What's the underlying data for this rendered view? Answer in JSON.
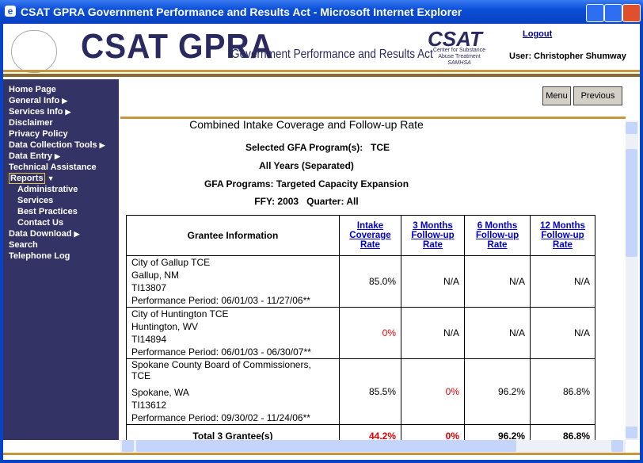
{
  "window": {
    "title": "CSAT GPRA Government Performance and Results Act - Microsoft Internet Explorer"
  },
  "header": {
    "logo_text": "CSAT GPRA",
    "subtitle": "Government Performance and Results Act",
    "csat_logo": {
      "name": "CSAT",
      "lines": [
        "Center for Substance",
        "Abuse Treatment",
        "SAMHSA"
      ]
    },
    "logout": "Logout",
    "user": "User: Christopher Shumway"
  },
  "nav": {
    "items": [
      "Home Page",
      "General Info",
      "Services Info",
      "Disclaimer",
      "Privacy Policy",
      "Data Collection Tools",
      "Data Entry",
      "Technical Assistance",
      "Reports",
      "Data Download",
      "Search",
      "Telephone Log"
    ],
    "reports_submenu": [
      "Administrative",
      "Services",
      "Best Practices",
      "Contact Us"
    ]
  },
  "toolbar": {
    "buttons": [
      "Menu",
      "Previous"
    ]
  },
  "report": {
    "title": "Combined Intake Coverage and Follow-up Rate",
    "program_label": "Selected GFA Program(s):",
    "program": "TCE",
    "years": "All Years (Separated)",
    "gfa": "GFA Programs: Targeted Capacity Expansion",
    "ffy": "FFY: 2003",
    "quarter": "Quarter: All"
  },
  "table": {
    "header": [
      "Grantee Information",
      "Intake Coverage Rate",
      "3 Months Follow-up Rate",
      "6 Months Follow-up Rate",
      "12 Months Follow-up Rate"
    ],
    "rows": [
      {
        "grantee": [
          "City of Gallup TCE",
          "Gallup, NM",
          "TI13807",
          "Performance Period: 06/01/03 - 11/27/06**"
        ],
        "rates": [
          "85.0%",
          "N/A",
          "N/A",
          "N/A"
        ]
      },
      {
        "grantee": [
          "City of Huntington TCE",
          "Huntington, WV",
          "TI14894",
          "Performance Period: 06/01/03 - 06/30/07**"
        ],
        "rates": [
          "0%",
          "N/A",
          "N/A",
          "N/A"
        ]
      },
      {
        "grantee": [
          "Spokane County Board of Commissioners, TCE",
          "Spokane, WA",
          "TI13612",
          "Performance Period: 09/30/02 - 11/24/06**"
        ],
        "rates": [
          "85.5%",
          "0%",
          "96.2%",
          "86.8%"
        ]
      }
    ],
    "total": {
      "label": "Total 3 Grantee(s)",
      "rates": [
        "44.2%",
        "0%",
        "96.2%",
        "86.8%"
      ]
    }
  }
}
